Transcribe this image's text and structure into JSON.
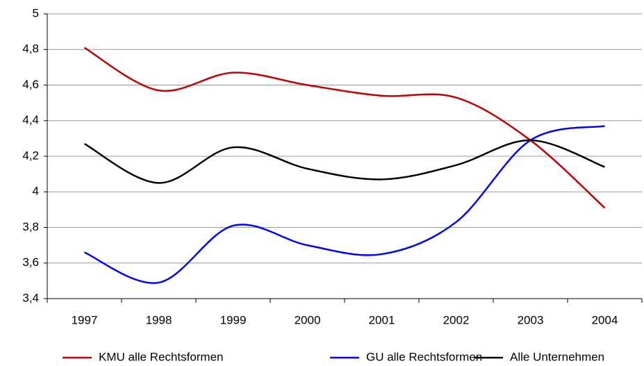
{
  "chart_data": {
    "type": "line",
    "categories": [
      "1997",
      "1998",
      "1999",
      "2000",
      "2001",
      "2002",
      "2003",
      "2004"
    ],
    "series": [
      {
        "name": "KMU alle Rechtsformen",
        "color": "#c00000",
        "values": [
          4.81,
          4.57,
          4.67,
          4.6,
          4.54,
          4.53,
          4.29,
          3.91
        ]
      },
      {
        "name": "GU alle Rechtsformen",
        "color": "#0000ff",
        "values": [
          3.66,
          3.49,
          3.81,
          3.7,
          3.65,
          3.83,
          4.29,
          4.37
        ]
      },
      {
        "name": "Alle Unternehmen",
        "color": "#000000",
        "values": [
          4.27,
          4.05,
          4.25,
          4.13,
          4.07,
          4.15,
          4.29,
          4.14
        ]
      }
    ],
    "ylim": [
      3.4,
      5
    ],
    "yticks": [
      {
        "value": 3.4,
        "label": "3,4"
      },
      {
        "value": 3.6,
        "label": "3,6"
      },
      {
        "value": 3.8,
        "label": "3,8"
      },
      4,
      {
        "value": 4.2,
        "label": "4,2"
      },
      {
        "value": 4.4,
        "label": "4,4"
      },
      {
        "value": 4.6,
        "label": "4,6"
      },
      {
        "value": 4.8,
        "label": "4,8"
      },
      5
    ],
    "grid": true,
    "smooth": true,
    "legend": "bottom"
  }
}
